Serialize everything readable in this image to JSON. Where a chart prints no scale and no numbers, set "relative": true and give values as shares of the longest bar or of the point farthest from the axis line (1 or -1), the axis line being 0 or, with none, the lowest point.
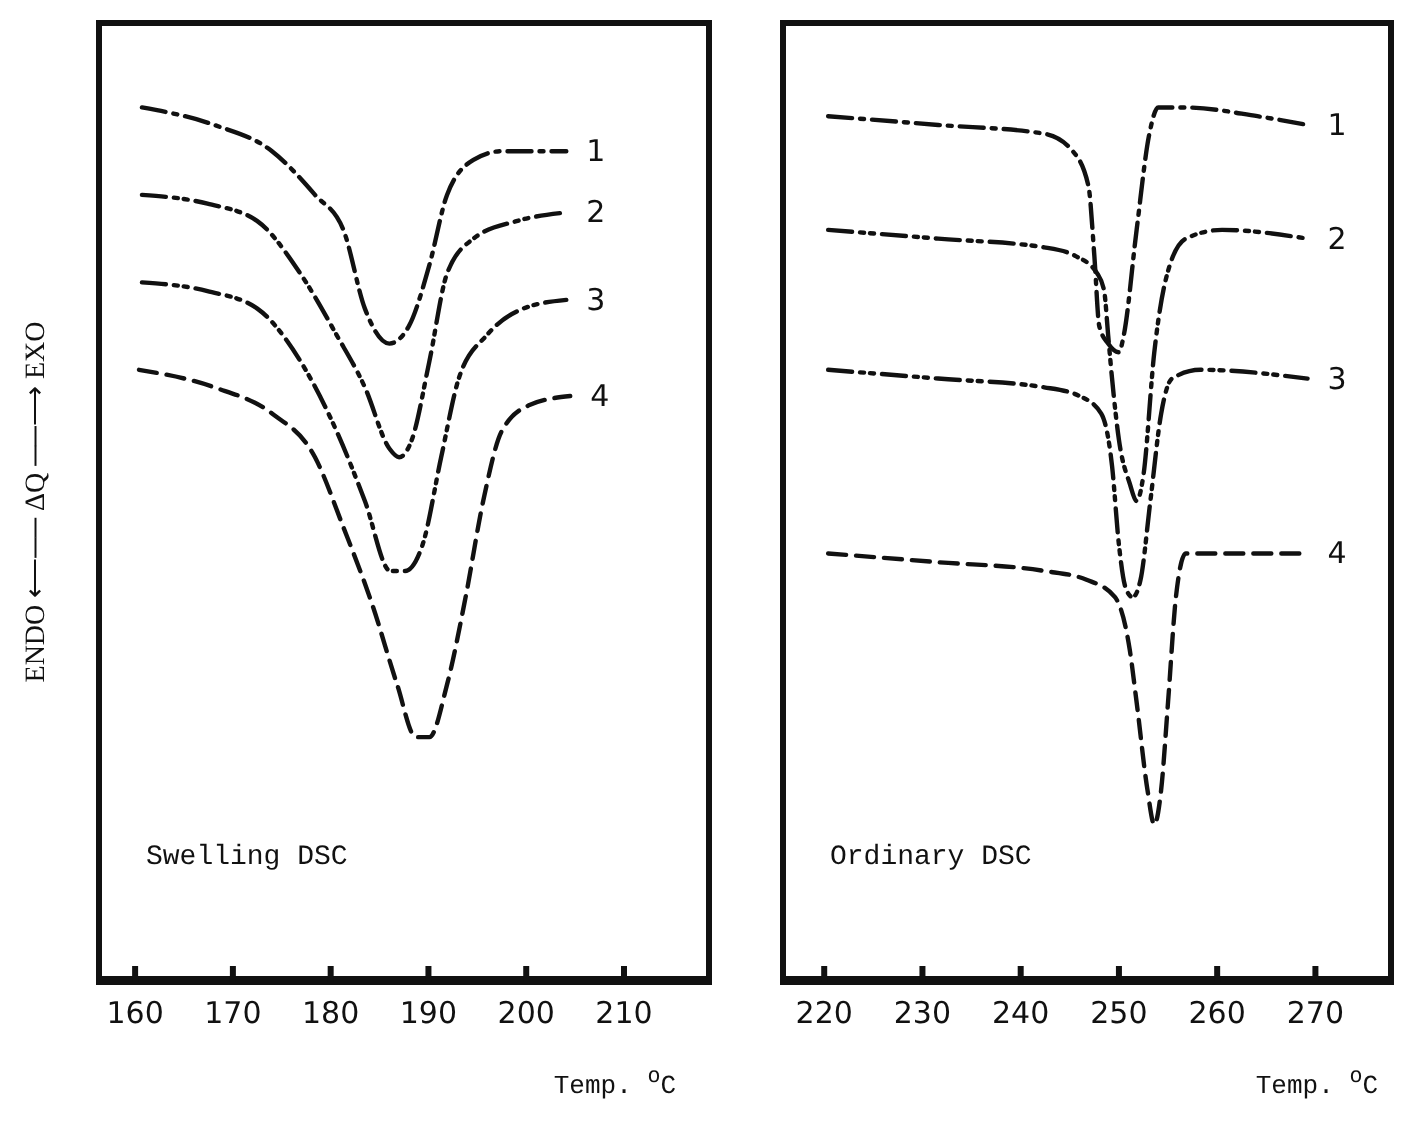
{
  "chart_data": [
    {
      "type": "line",
      "relative": true,
      "xlabel": "Temp. $^{o}$C",
      "ylabel": "ENDO ⟵── ΔQ ──⟶ EXO",
      "xlim": [
        156,
        219
      ],
      "xticks": [
        160,
        170,
        180,
        190,
        200,
        210
      ],
      "marker": "none",
      "annotations": [
        "Swelling DSC"
      ],
      "series": [
        {
          "name": "1",
          "color": "#111111",
          "line_style": "dashdot",
          "x": [
            160.7,
            168.1,
            174,
            178.4,
            181.3,
            183.5,
            186,
            188,
            190.1,
            191.9,
            194.6,
            197.5,
            204.1
          ],
          "values": [
            1.0,
            0.98,
            0.95,
            0.9,
            0.86,
            0.77,
            0.73,
            0.75,
            0.82,
            0.9,
            0.94,
            0.95,
            0.95
          ]
        },
        {
          "name": "2",
          "color": "#111111",
          "line_style": "dashdotdot",
          "x": [
            160.7,
            167.4,
            172.5,
            176.9,
            180.6,
            183.5,
            186,
            187,
            188.3,
            190.1,
            191.9,
            194.6,
            199,
            204.1
          ],
          "values": [
            0.9,
            0.89,
            0.87,
            0.81,
            0.74,
            0.68,
            0.61,
            0.6,
            0.62,
            0.71,
            0.81,
            0.85,
            0.87,
            0.88
          ]
        },
        {
          "name": "3",
          "color": "#111111",
          "line_style": "dashdotdot",
          "x": [
            160.7,
            167.4,
            172.5,
            176.9,
            180.6,
            183.5,
            186.1,
            187.6,
            189.4,
            191.3,
            193.1,
            196,
            199.7,
            204.1
          ],
          "values": [
            0.8,
            0.79,
            0.77,
            0.71,
            0.63,
            0.55,
            0.47,
            0.47,
            0.5,
            0.6,
            0.69,
            0.74,
            0.77,
            0.78
          ]
        },
        {
          "name": "4",
          "color": "#111111",
          "line_style": "dashed",
          "x": [
            160.4,
            168.1,
            174,
            178.4,
            181.3,
            184.3,
            186.8,
            188.7,
            190.1,
            191.9,
            193.8,
            195.6,
            197.5,
            200.4,
            204.5
          ],
          "values": [
            0.7,
            0.68,
            0.65,
            0.6,
            0.52,
            0.43,
            0.34,
            0.28,
            0.28,
            0.34,
            0.44,
            0.55,
            0.63,
            0.66,
            0.67
          ]
        }
      ]
    },
    {
      "type": "line",
      "relative": true,
      "xlabel": "Temp. $^{o}$C",
      "xlim": [
        215.5,
        278
      ],
      "xticks": [
        220,
        230,
        240,
        250,
        260,
        270
      ],
      "marker": "none",
      "annotations": [
        "Ordinary DSC"
      ],
      "series": [
        {
          "name": "1",
          "color": "#111111",
          "line_style": "dashdot",
          "x": [
            220.4,
            231.6,
            242.4,
            245.3,
            246.9,
            247.5,
            248,
            248.9,
            250,
            250.5,
            251.8,
            253.1,
            254,
            256.8,
            264.1,
            269.2
          ],
          "values": [
            0.99,
            0.98,
            0.97,
            0.95,
            0.91,
            0.83,
            0.75,
            0.73,
            0.72,
            0.74,
            0.86,
            0.97,
            1.0,
            1.0,
            0.99,
            0.98
          ]
        },
        {
          "name": "2",
          "color": "#111111",
          "line_style": "dashdotdot",
          "x": [
            220.4,
            231.6,
            242.4,
            245.6,
            247.8,
            248.5,
            248.9,
            249.3,
            250,
            251.1,
            251.8,
            252.5,
            253.6,
            254.7,
            256.8,
            260.5,
            269.2
          ],
          "values": [
            0.86,
            0.85,
            0.84,
            0.83,
            0.81,
            0.79,
            0.74,
            0.69,
            0.62,
            0.57,
            0.55,
            0.58,
            0.72,
            0.8,
            0.85,
            0.86,
            0.85
          ]
        },
        {
          "name": "3",
          "color": "#111111",
          "line_style": "dashdotdot",
          "x": [
            220.4,
            231.6,
            242.4,
            246,
            248.2,
            249.3,
            250,
            250.7,
            251.4,
            252.2,
            253.2,
            254.3,
            255.4,
            258.3,
            269.2
          ],
          "values": [
            0.7,
            0.69,
            0.68,
            0.67,
            0.65,
            0.59,
            0.5,
            0.45,
            0.44,
            0.46,
            0.55,
            0.65,
            0.69,
            0.7,
            0.69
          ]
        },
        {
          "name": "4",
          "color": "#111111",
          "line_style": "dashed",
          "x": [
            220.4,
            231.6,
            242.4,
            246.7,
            249.6,
            251.1,
            251.8,
            252.9,
            253.6,
            254.3,
            255,
            255.8,
            256.8,
            260.5,
            269.2
          ],
          "values": [
            0.49,
            0.48,
            0.47,
            0.46,
            0.44,
            0.38,
            0.32,
            0.22,
            0.18,
            0.22,
            0.32,
            0.44,
            0.49,
            0.49,
            0.49
          ]
        }
      ]
    }
  ]
}
